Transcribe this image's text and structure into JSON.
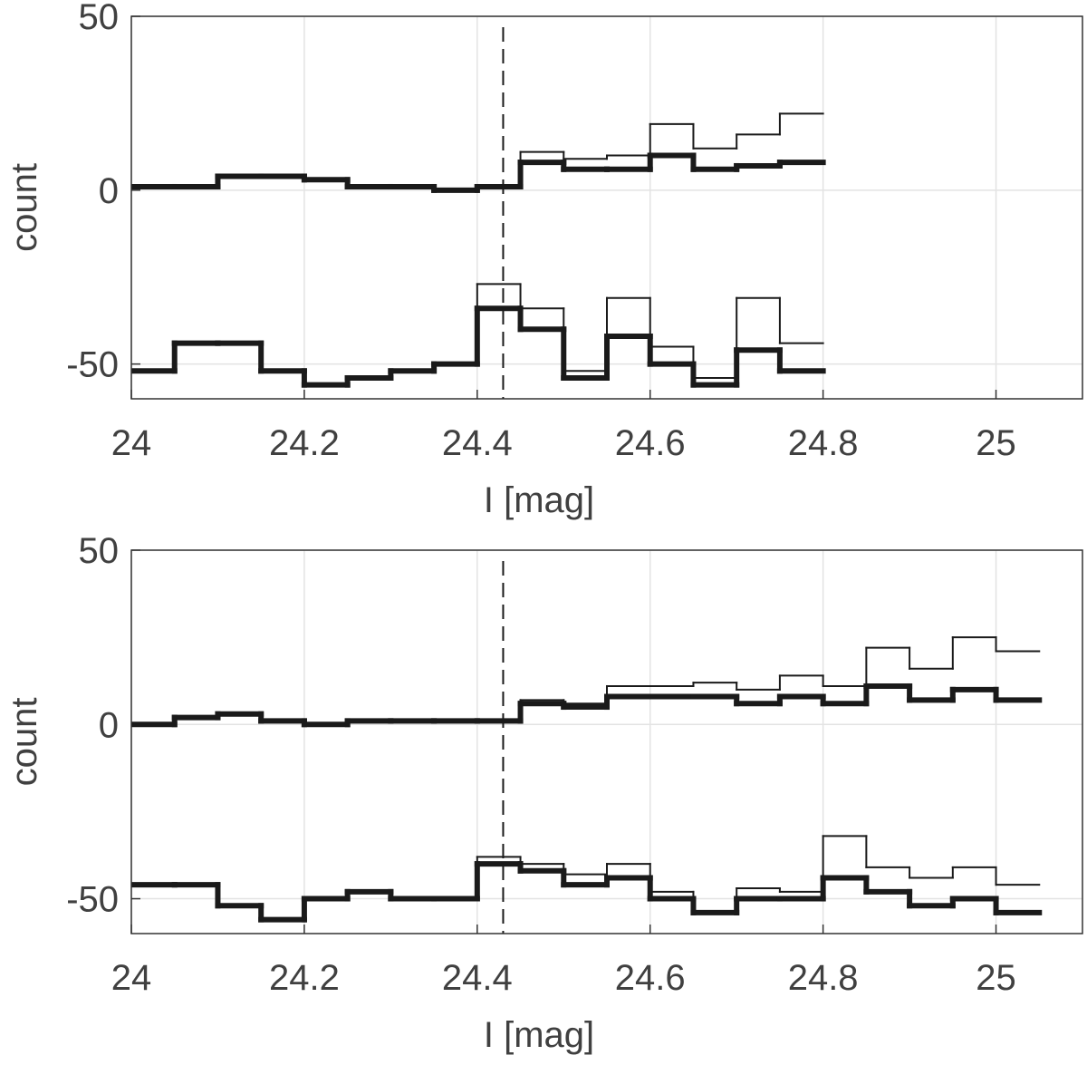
{
  "chart_data": [
    {
      "type": "histogram",
      "xlabel": "I [mag]",
      "ylabel": "count",
      "xlim": [
        24,
        25.1
      ],
      "ylim": [
        -60,
        50
      ],
      "xticks": [
        24,
        24.2,
        24.4,
        24.6,
        24.8,
        25
      ],
      "yticks": [
        -50,
        0,
        50
      ],
      "grid": true,
      "vline": 24.43,
      "bins": [
        24,
        24.05,
        24.1,
        24.15,
        24.2,
        24.25,
        24.3,
        24.35,
        24.4,
        24.45,
        24.5,
        24.55,
        24.6,
        24.65,
        24.7,
        24.75,
        24.8
      ],
      "series": [
        {
          "color": "#1a1a1a",
          "linewidth": 2,
          "values": [
            1,
            1,
            4,
            4,
            3,
            1,
            1,
            0,
            1,
            11,
            9,
            10,
            19,
            12,
            16,
            22
          ]
        },
        {
          "color": "#1a1a1a",
          "linewidth": 6,
          "values": [
            1,
            1,
            4,
            4,
            3,
            1,
            1,
            0,
            1,
            8,
            6,
            6,
            10,
            6,
            7,
            8
          ]
        },
        {
          "color": "#1a1a1a",
          "linewidth": 2,
          "values": [
            -52,
            -44,
            -44,
            -52,
            -56,
            -54,
            -52,
            -50,
            -27,
            -34,
            -52,
            -31,
            -45,
            -54,
            -31,
            -44
          ]
        },
        {
          "color": "#1a1a1a",
          "linewidth": 6,
          "values": [
            -52,
            -44,
            -44,
            -52,
            -56,
            -54,
            -52,
            -50,
            -34,
            -40,
            -54,
            -42,
            -50,
            -56,
            -46,
            -52
          ]
        }
      ]
    },
    {
      "type": "histogram",
      "xlabel": "I [mag]",
      "ylabel": "count",
      "xlim": [
        24,
        25.1
      ],
      "ylim": [
        -60,
        50
      ],
      "xticks": [
        24,
        24.2,
        24.4,
        24.6,
        24.8,
        25
      ],
      "yticks": [
        -50,
        0,
        50
      ],
      "grid": true,
      "vline": 24.43,
      "bins": [
        24,
        24.05,
        24.1,
        24.15,
        24.2,
        24.25,
        24.3,
        24.35,
        24.4,
        24.45,
        24.5,
        24.55,
        24.6,
        24.65,
        24.7,
        24.75,
        24.8,
        24.85,
        24.9,
        24.95,
        25,
        25.05
      ],
      "series": [
        {
          "color": "#1a1a1a",
          "linewidth": 2,
          "values": [
            0,
            2,
            3,
            1,
            0,
            1,
            1,
            1,
            1,
            7,
            6,
            11,
            11,
            12,
            10,
            14,
            11,
            22,
            16,
            25,
            21
          ]
        },
        {
          "color": "#1a1a1a",
          "linewidth": 6,
          "values": [
            0,
            2,
            3,
            1,
            0,
            1,
            1,
            1,
            1,
            6,
            5,
            8,
            8,
            8,
            6,
            8,
            6,
            11,
            7,
            10,
            7
          ]
        },
        {
          "color": "#1a1a1a",
          "linewidth": 2,
          "values": [
            -46,
            -46,
            -52,
            -56,
            -50,
            -48,
            -50,
            -50,
            -38,
            -40,
            -43,
            -40,
            -48,
            -54,
            -47,
            -48,
            -32,
            -41,
            -44,
            -41,
            -46
          ]
        },
        {
          "color": "#1a1a1a",
          "linewidth": 6,
          "values": [
            -46,
            -46,
            -52,
            -56,
            -50,
            -48,
            -50,
            -50,
            -40,
            -42,
            -46,
            -44,
            -50,
            -54,
            -50,
            -50,
            -44,
            -48,
            -52,
            -50,
            -54
          ]
        }
      ]
    }
  ]
}
